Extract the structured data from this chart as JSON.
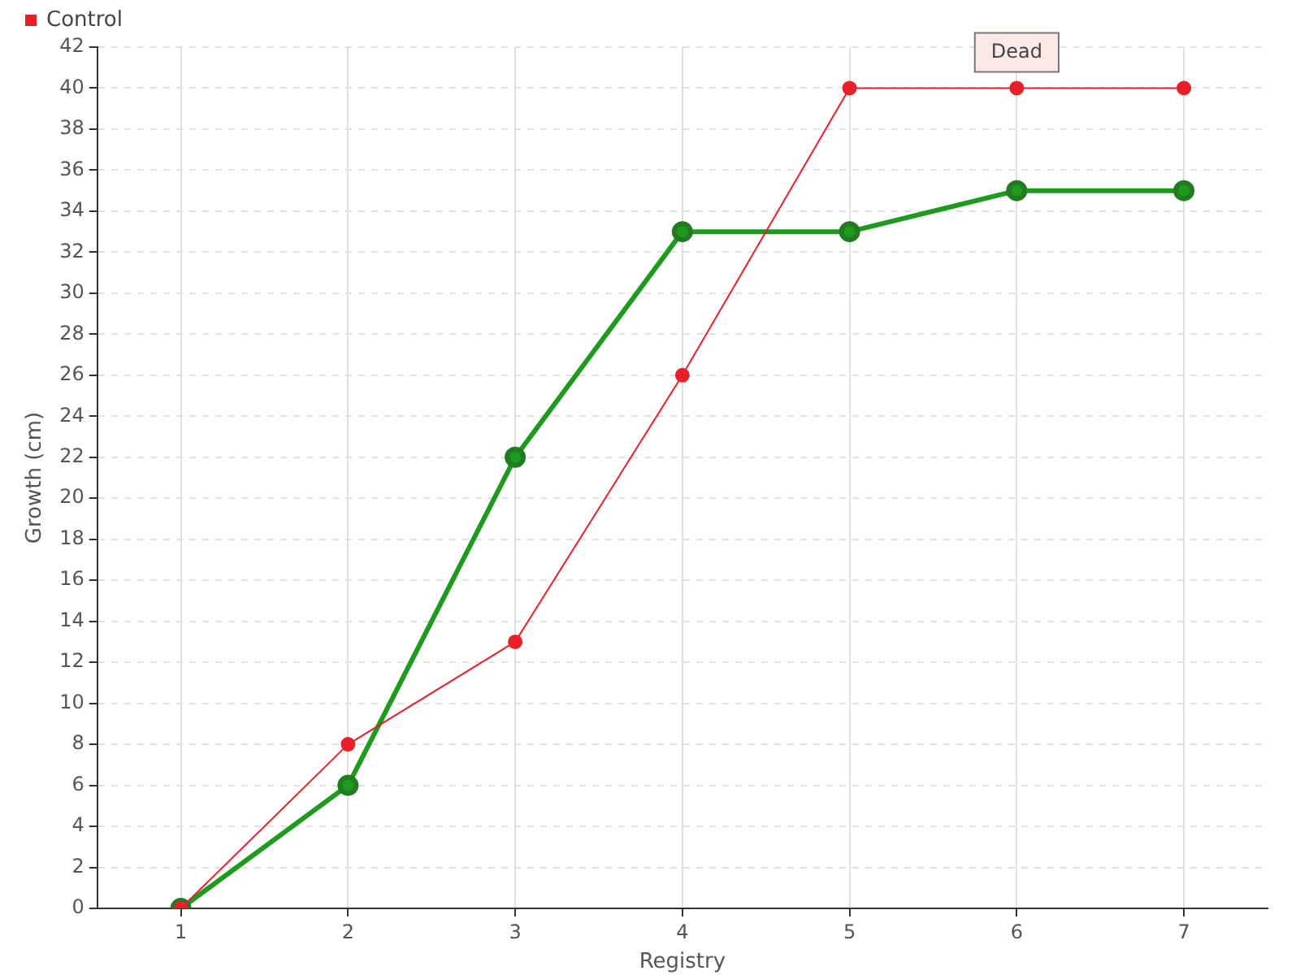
{
  "chart_data": {
    "type": "line",
    "xlabel": "Registry",
    "ylabel": "Growth (cm)",
    "categories": [
      "1",
      "2",
      "3",
      "4",
      "5",
      "6",
      "7"
    ],
    "series": [
      {
        "color": "#1e9a1e",
        "values": [
          0,
          6,
          22,
          33,
          33,
          35,
          35
        ]
      },
      {
        "name": "Control",
        "color": "#e8202a",
        "values": [
          0,
          8,
          13,
          26,
          40,
          40,
          40
        ]
      }
    ],
    "ylim": [
      0,
      42
    ],
    "yticks": [
      0,
      2,
      4,
      6,
      8,
      10,
      12,
      14,
      16,
      18,
      20,
      22,
      24,
      26,
      28,
      30,
      32,
      34,
      36,
      38,
      40,
      42
    ],
    "grid": true,
    "legend": "top left",
    "marker": "circle",
    "line_style": "solid",
    "annotations": [
      {
        "text": "Dead",
        "x": "6",
        "y": 40
      }
    ]
  }
}
